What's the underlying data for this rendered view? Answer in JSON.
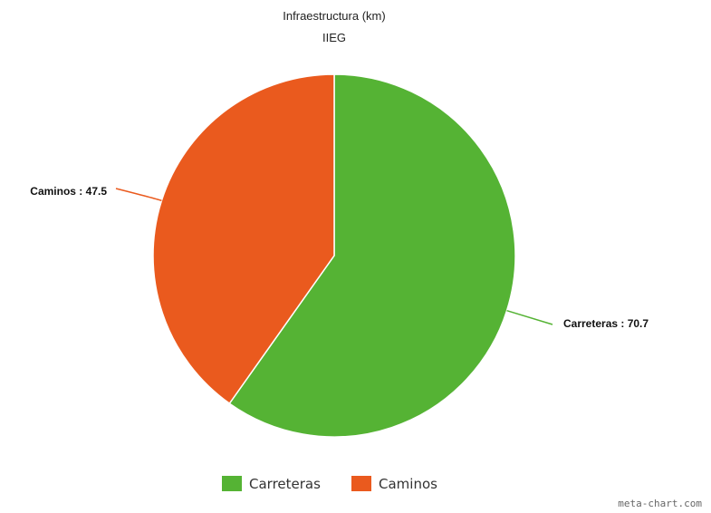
{
  "chart_data": {
    "type": "pie",
    "title": "Infraestructura (km)",
    "subtitle": "IIEG",
    "slices": [
      {
        "name": "Carreteras",
        "value": 70.7,
        "color": "#55b334"
      },
      {
        "name": "Caminos",
        "value": 47.5,
        "color": "#ea5a1e"
      }
    ],
    "label_separator": " : ",
    "legend": {
      "position": "bottom",
      "items": [
        "Carreteras",
        "Caminos"
      ]
    }
  },
  "credit": "meta-chart.com"
}
